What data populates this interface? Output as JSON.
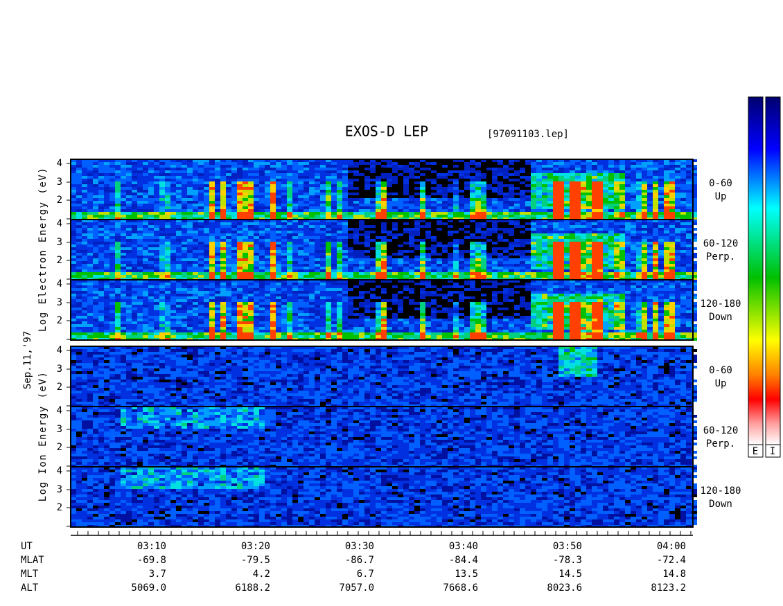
{
  "title": "EXOS-D LEP",
  "file": "[97091103.lep]",
  "electron": {
    "axis_label": "Log Electron Energy (eV)",
    "panels": [
      {
        "ticks": [
          "4",
          "3",
          "2"
        ],
        "angle": "0-60",
        "direction": "Up"
      },
      {
        "ticks": [
          "4",
          "3",
          "2"
        ],
        "angle": "60-120",
        "direction": "Perp."
      },
      {
        "ticks": [
          "4",
          "3",
          "2"
        ],
        "angle": "120-180",
        "direction": "Down"
      }
    ]
  },
  "date": "Sep.11,'97",
  "ion": {
    "axis_label": "Log Ion Energy (eV)",
    "panels": [
      {
        "ticks": [
          "4",
          "3",
          "2"
        ],
        "angle": "0-60",
        "direction": "Up"
      },
      {
        "ticks": [
          "4",
          "3",
          "2"
        ],
        "angle": "60-120",
        "direction": "Perp."
      },
      {
        "ticks": [
          "4",
          "3",
          "2"
        ],
        "angle": "120-180",
        "direction": "Down"
      }
    ]
  },
  "colorbar_labels": [
    "E",
    "I"
  ],
  "ephemeris": {
    "rows": [
      {
        "label": "UT",
        "values": [
          "03:10",
          "03:20",
          "03:30",
          "03:40",
          "03:50",
          "04:00"
        ]
      },
      {
        "label": "MLAT",
        "values": [
          "-69.8",
          "-79.5",
          "-86.7",
          "-84.4",
          "-78.3",
          "-72.4"
        ]
      },
      {
        "label": "MLT",
        "values": [
          "3.7",
          "4.2",
          "6.7",
          "13.5",
          "14.5",
          "14.8"
        ]
      },
      {
        "label": "ALT",
        "values": [
          "5069.0",
          "6188.2",
          "7057.0",
          "7668.6",
          "8023.6",
          "8123.2"
        ]
      }
    ]
  }
}
